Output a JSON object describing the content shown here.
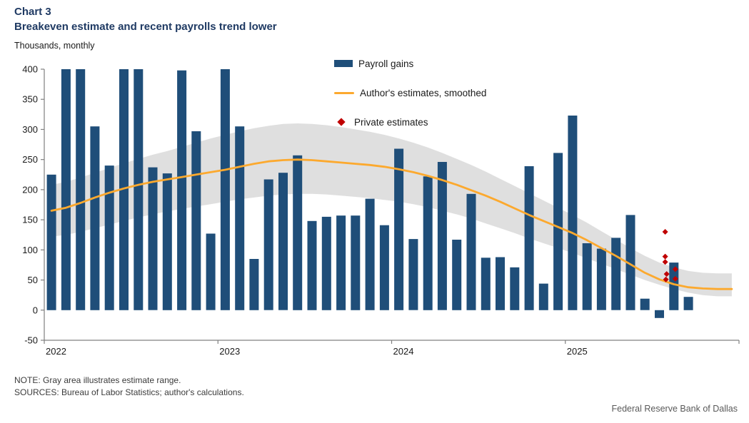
{
  "header": {
    "chart_label": "Chart 3",
    "title": "Breakeven estimate and recent payrolls trend lower",
    "units": "Thousands, monthly"
  },
  "legend": {
    "payroll": "Payroll gains",
    "estimates": "Author's estimates, smoothed",
    "private": "Private estimates"
  },
  "notes": {
    "note": "NOTE: Gray area illustrates estimate range.",
    "sources": "SOURCES: Bureau of Labor Statistics; author's calculations.",
    "attribution": "Federal Reserve Bank of Dallas"
  },
  "colors": {
    "bar": "#1F4E79",
    "line": "#FCA92E",
    "band": "#DBDBDB",
    "diamond": "#C00000",
    "title": "#1F3A63",
    "axis": "#808080"
  },
  "chart_data": {
    "type": "bar",
    "title": "Breakeven estimate and recent payrolls trend lower",
    "xlabel": "",
    "ylabel": "Thousands, monthly",
    "ylim": [
      -50,
      400
    ],
    "ytick_step": 50,
    "months_total": 48,
    "x_start": "2022-01",
    "year_labels": [
      "2022",
      "2023",
      "2024",
      "2025"
    ],
    "grid": false,
    "legend_position": "top-center",
    "series": [
      {
        "name": "Payroll gains",
        "type": "bar",
        "values": [
          225,
          400,
          400,
          305,
          240,
          400,
          400,
          237,
          227,
          398,
          297,
          127,
          400,
          305,
          85,
          217,
          228,
          257,
          148,
          155,
          157,
          157,
          185,
          141,
          268,
          118,
          222,
          246,
          117,
          193,
          87,
          88,
          71,
          239,
          44,
          261,
          323,
          111,
          102,
          120,
          158,
          19,
          -13,
          79,
          22
        ]
      },
      {
        "name": "Author's estimates, smoothed",
        "type": "line",
        "values": [
          165,
          170,
          178,
          187,
          195,
          202,
          208,
          213,
          217,
          221,
          225,
          229,
          233,
          238,
          243,
          247,
          249,
          250,
          249,
          247,
          245,
          243,
          241,
          238,
          234,
          229,
          223,
          216,
          208,
          199,
          190,
          180,
          169,
          158,
          148,
          138,
          128,
          116,
          103,
          90,
          76,
          62,
          51,
          43,
          38,
          36,
          35,
          35
        ]
      },
      {
        "name": "Estimate range",
        "type": "band",
        "upper": [
          208,
          213,
          220,
          228,
          236,
          244,
          251,
          258,
          264,
          271,
          278,
          285,
          291,
          297,
          302,
          306,
          309,
          310,
          309,
          307,
          304,
          300,
          296,
          291,
          285,
          278,
          270,
          261,
          251,
          241,
          230,
          218,
          206,
          194,
          182,
          170,
          158,
          145,
          131,
          117,
          103,
          90,
          79,
          71,
          65,
          62,
          61,
          61
        ],
        "lower": [
          122,
          125,
          130,
          136,
          142,
          148,
          154,
          159,
          164,
          168,
          172,
          176,
          180,
          184,
          187,
          190,
          192,
          193,
          193,
          192,
          190,
          188,
          186,
          183,
          180,
          176,
          171,
          165,
          159,
          152,
          144,
          136,
          128,
          119,
          111,
          103,
          95,
          86,
          77,
          68,
          59,
          50,
          42,
          35,
          29,
          25,
          23,
          23
        ]
      },
      {
        "name": "Private estimates",
        "type": "scatter",
        "points": [
          {
            "m": 42.4,
            "v": 130
          },
          {
            "m": 42.4,
            "v": 89
          },
          {
            "m": 42.4,
            "v": 80
          },
          {
            "m": 42.5,
            "v": 60
          },
          {
            "m": 42.45,
            "v": 51
          },
          {
            "m": 43.1,
            "v": 68
          },
          {
            "m": 43.1,
            "v": 52
          }
        ]
      }
    ]
  }
}
